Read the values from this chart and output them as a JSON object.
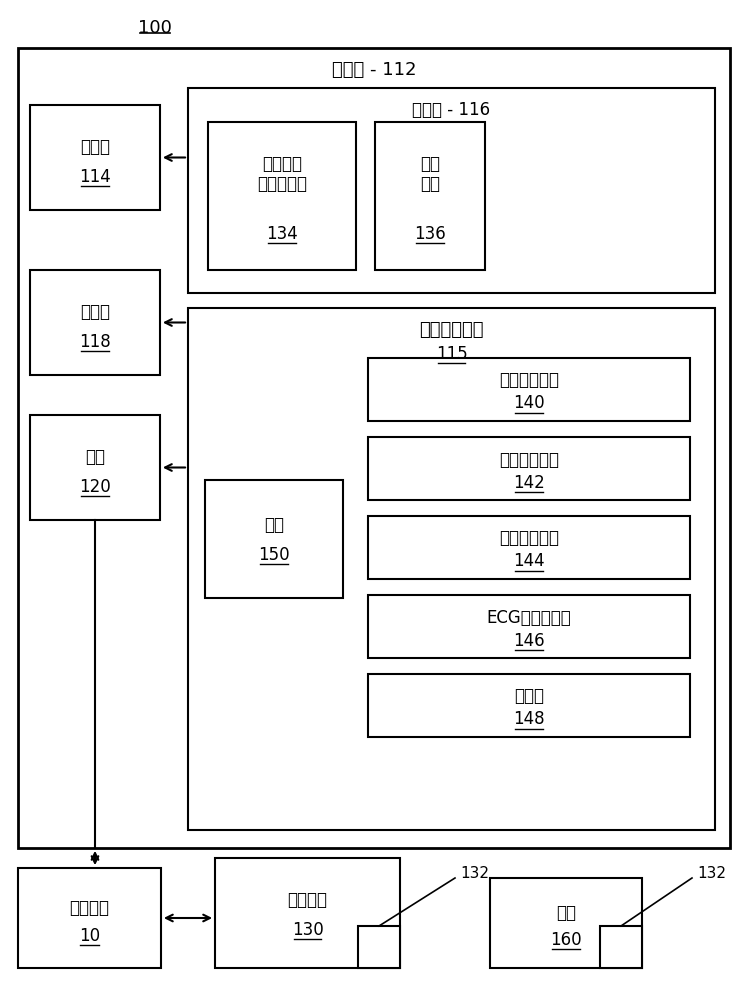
{
  "title_label": "100",
  "workstation_label": "工作站 - 112",
  "storage_label": "存储器 - 116",
  "img_label": "（一幅或\n多幅）图像",
  "img_num": "134",
  "quality_label": "质量\n评分",
  "quality_num": "136",
  "qsm_label": "质量评分模块",
  "qsm_num": "115",
  "processor_label": "处理器",
  "processor_num": "114",
  "display_label": "显示器",
  "display_num": "118",
  "interface_label": "接口",
  "interface_num": "120",
  "combine_label": "组合",
  "combine_num": "150",
  "app1_label": "缝合检测应用",
  "app1_num": "140",
  "app2_label": "图像质量应用",
  "app2_num": "142",
  "app3_label": "运动检测应用",
  "app3_num": "144",
  "app4_label": "ECG变化性应用",
  "app4_num": "146",
  "app5_label": "其他源",
  "app5_num": "148",
  "imaging_sys_label": "成像系统",
  "imaging_sys_num": "10",
  "probe_label": "成像探头",
  "probe_num": "130",
  "probe_arrow_num": "132",
  "object_label": "对象",
  "object_num": "160",
  "object_arrow_num": "132",
  "bg_color": "#ffffff",
  "border_color": "#000000"
}
